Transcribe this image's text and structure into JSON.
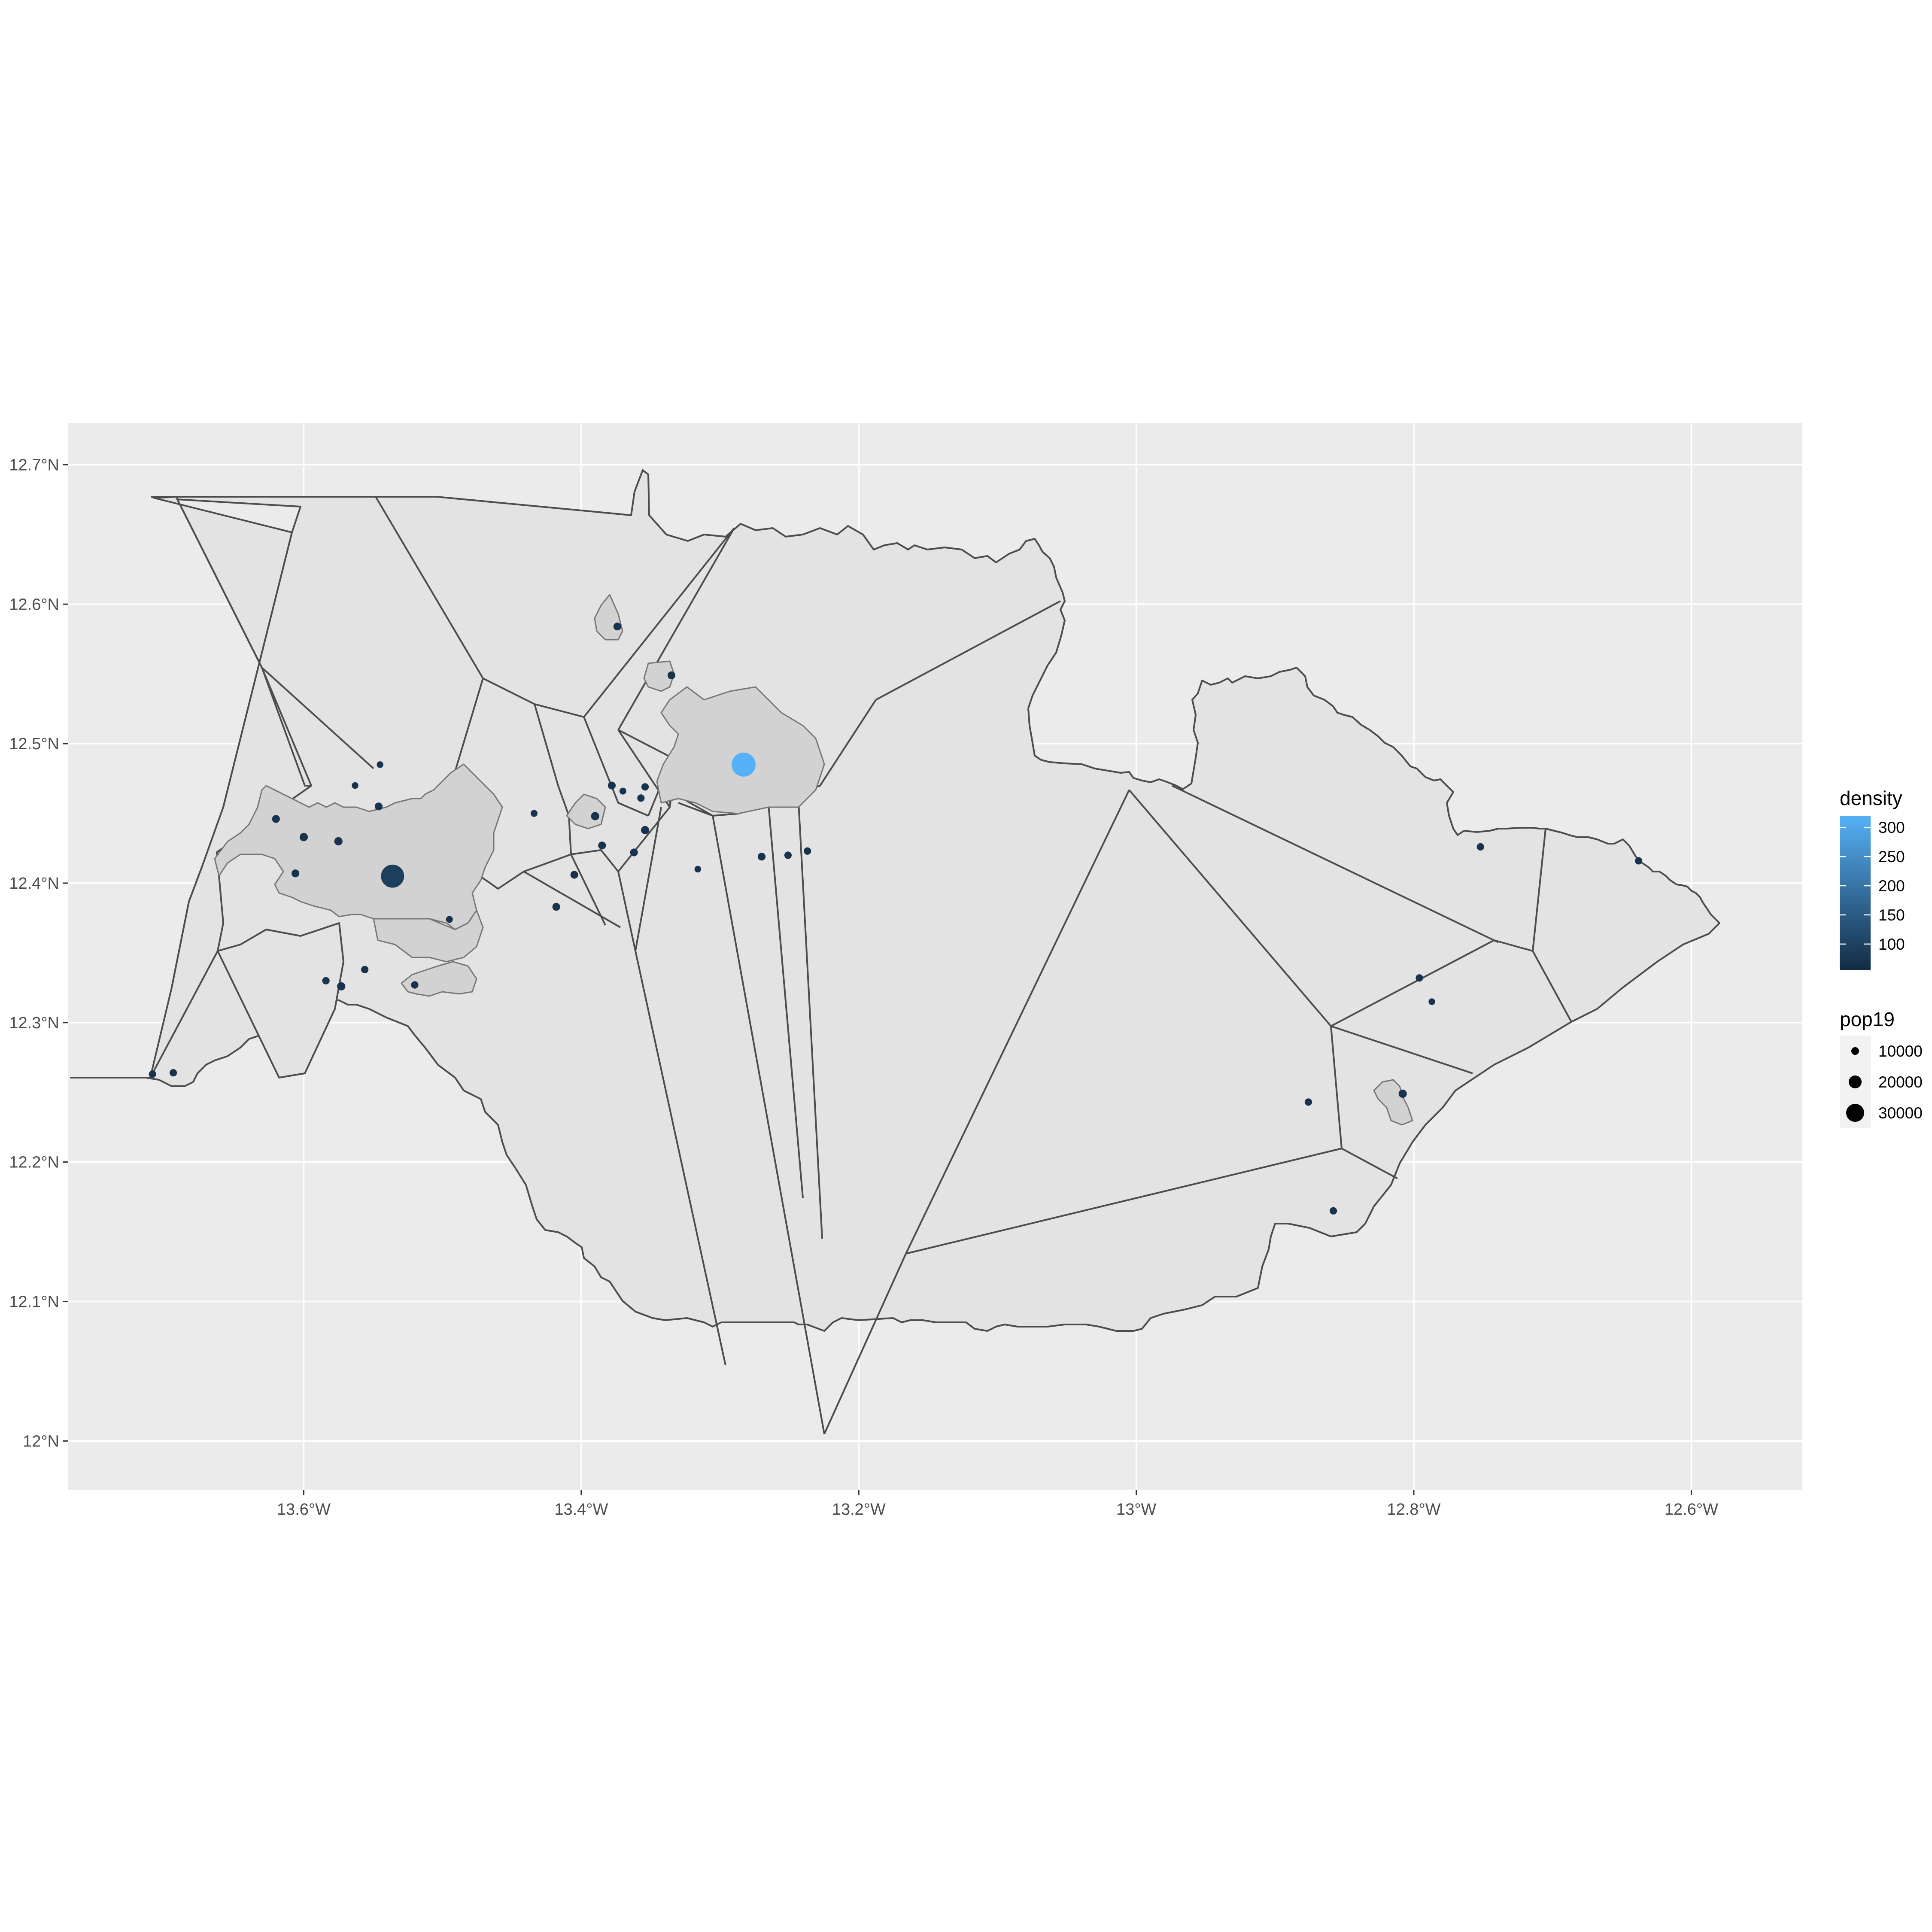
{
  "axes": {
    "x_ticks": [
      "13.6°W",
      "13.4°W",
      "13.2°W",
      "13°W",
      "12.8°W",
      "12.6°W"
    ],
    "y_ticks": [
      "12.7°N",
      "12.6°N",
      "12.5°N",
      "12.4°N",
      "12.3°N",
      "12.2°N",
      "12.1°N",
      "12°N"
    ]
  },
  "legend": {
    "density": {
      "title": "density",
      "ticks": [
        "300",
        "250",
        "200",
        "150",
        "100"
      ],
      "color_low": "#132B43",
      "color_high": "#56B1F7"
    },
    "pop19": {
      "title": "pop19",
      "labels": [
        "10000",
        "20000",
        "30000"
      ]
    }
  },
  "colors": {
    "panel_bg": "#EBEBEB",
    "grid": "#FFFFFF",
    "region_fill": "#E3E3E3",
    "settlement_fill": "#D2D2D2",
    "outline": "#4D4D4D",
    "point_low": "#132B43",
    "point_high": "#56B1F7"
  },
  "chart_data": {
    "type": "map",
    "xlim": [
      -13.77,
      -12.52
    ],
    "ylim": [
      11.965,
      12.73
    ],
    "points": [
      {
        "lon": -13.283,
        "lat": 12.485,
        "pop19": 33000,
        "density": 320
      },
      {
        "lon": -13.536,
        "lat": 12.405,
        "pop19": 30000,
        "density": 95
      },
      {
        "lon": -13.374,
        "lat": 12.584,
        "pop19": 1500,
        "density": 70
      },
      {
        "lon": -13.335,
        "lat": 12.549,
        "pop19": 1500,
        "density": 70
      },
      {
        "lon": -13.545,
        "lat": 12.485,
        "pop19": 800,
        "density": 70
      },
      {
        "lon": -13.563,
        "lat": 12.47,
        "pop19": 800,
        "density": 70
      },
      {
        "lon": -13.546,
        "lat": 12.455,
        "pop19": 1500,
        "density": 70
      },
      {
        "lon": -13.6,
        "lat": 12.433,
        "pop19": 1800,
        "density": 70
      },
      {
        "lon": -13.62,
        "lat": 12.446,
        "pop19": 1500,
        "density": 70
      },
      {
        "lon": -13.575,
        "lat": 12.43,
        "pop19": 1800,
        "density": 70
      },
      {
        "lon": -13.606,
        "lat": 12.407,
        "pop19": 1500,
        "density": 70
      },
      {
        "lon": -13.495,
        "lat": 12.374,
        "pop19": 900,
        "density": 70
      },
      {
        "lon": -13.434,
        "lat": 12.45,
        "pop19": 900,
        "density": 70
      },
      {
        "lon": -13.418,
        "lat": 12.383,
        "pop19": 1500,
        "density": 70
      },
      {
        "lon": -13.405,
        "lat": 12.406,
        "pop19": 1500,
        "density": 70
      },
      {
        "lon": -13.39,
        "lat": 12.448,
        "pop19": 1800,
        "density": 70
      },
      {
        "lon": -13.385,
        "lat": 12.427,
        "pop19": 1500,
        "density": 70
      },
      {
        "lon": -13.378,
        "lat": 12.47,
        "pop19": 1500,
        "density": 70
      },
      {
        "lon": -13.37,
        "lat": 12.466,
        "pop19": 900,
        "density": 70
      },
      {
        "lon": -13.362,
        "lat": 12.422,
        "pop19": 1500,
        "density": 70
      },
      {
        "lon": -13.357,
        "lat": 12.461,
        "pop19": 1200,
        "density": 70
      },
      {
        "lon": -13.354,
        "lat": 12.469,
        "pop19": 1200,
        "density": 70
      },
      {
        "lon": -13.354,
        "lat": 12.438,
        "pop19": 1800,
        "density": 70
      },
      {
        "lon": -13.316,
        "lat": 12.41,
        "pop19": 800,
        "density": 70
      },
      {
        "lon": -13.27,
        "lat": 12.419,
        "pop19": 1500,
        "density": 70
      },
      {
        "lon": -13.251,
        "lat": 12.42,
        "pop19": 1200,
        "density": 70
      },
      {
        "lon": -13.237,
        "lat": 12.423,
        "pop19": 1200,
        "density": 70
      },
      {
        "lon": -13.573,
        "lat": 12.326,
        "pop19": 1800,
        "density": 70
      },
      {
        "lon": -13.584,
        "lat": 12.33,
        "pop19": 1200,
        "density": 70
      },
      {
        "lon": -13.556,
        "lat": 12.338,
        "pop19": 1200,
        "density": 70
      },
      {
        "lon": -13.52,
        "lat": 12.327,
        "pop19": 1200,
        "density": 70
      },
      {
        "lon": -13.709,
        "lat": 12.263,
        "pop19": 1200,
        "density": 70
      },
      {
        "lon": -13.694,
        "lat": 12.264,
        "pop19": 1200,
        "density": 70
      },
      {
        "lon": -12.752,
        "lat": 12.426,
        "pop19": 1200,
        "density": 70
      },
      {
        "lon": -12.638,
        "lat": 12.416,
        "pop19": 1200,
        "density": 70
      },
      {
        "lon": -12.796,
        "lat": 12.332,
        "pop19": 1200,
        "density": 70
      },
      {
        "lon": -12.787,
        "lat": 12.315,
        "pop19": 800,
        "density": 70
      },
      {
        "lon": -12.876,
        "lat": 12.243,
        "pop19": 1200,
        "density": 70
      },
      {
        "lon": -12.808,
        "lat": 12.249,
        "pop19": 1800,
        "density": 70
      },
      {
        "lon": -12.858,
        "lat": 12.165,
        "pop19": 1200,
        "density": 70
      }
    ]
  }
}
